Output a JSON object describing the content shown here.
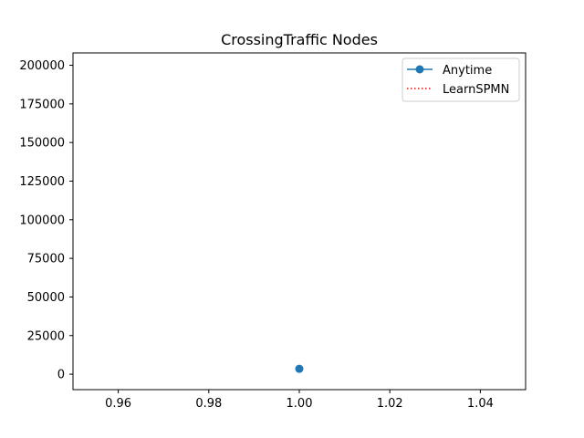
{
  "chart_data": {
    "type": "line",
    "title": "CrossingTraffic Nodes",
    "xlabel": "",
    "ylabel": "",
    "xlim": [
      0.95,
      1.05
    ],
    "ylim": [
      -10000,
      208000
    ],
    "x_ticks": [
      0.96,
      0.98,
      1.0,
      1.02,
      1.04
    ],
    "x_tick_labels": [
      "0.96",
      "0.98",
      "1.00",
      "1.02",
      "1.04"
    ],
    "y_ticks": [
      0,
      25000,
      50000,
      75000,
      100000,
      125000,
      150000,
      175000,
      200000
    ],
    "y_tick_labels": [
      "0",
      "25000",
      "50000",
      "75000",
      "100000",
      "125000",
      "150000",
      "175000",
      "200000"
    ],
    "grid": false,
    "legend_position": "upper right",
    "series": [
      {
        "name": "Anytime",
        "x": [
          1.0
        ],
        "y": [
          3500
        ],
        "color": "#1f77b4",
        "style": "solid",
        "marker": "circle"
      },
      {
        "name": "LearnSPMN",
        "x": [],
        "y": [],
        "color": "#ff0000",
        "style": "dotted",
        "marker": "none"
      }
    ]
  }
}
